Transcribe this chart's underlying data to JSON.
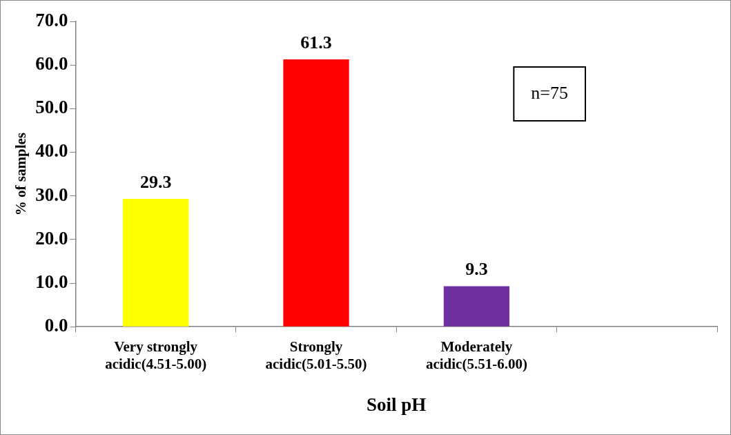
{
  "chart_data": {
    "type": "bar",
    "categories": [
      "Very strongly acidic(4.51-5.00)",
      "Strongly acidic(5.01-5.50)",
      "Moderately acidic(5.51-6.00)",
      null
    ],
    "values": [
      29.3,
      61.3,
      9.3,
      null
    ],
    "colors": [
      "#ffff00",
      "#ff0000",
      "#7030a0",
      "#7030a0"
    ],
    "xlabel": "Soil pH",
    "ylabel": "% of samples",
    "ylim": [
      0,
      70
    ],
    "yticks": [
      {
        "value": 0,
        "label": "0.0"
      },
      {
        "value": 10,
        "label": "10.0"
      },
      {
        "value": 20,
        "label": "20.0"
      },
      {
        "value": 30,
        "label": "30.0"
      },
      {
        "value": 40,
        "label": "40.0"
      },
      {
        "value": 50,
        "label": "50.0"
      },
      {
        "value": 60,
        "label": "60.0"
      },
      {
        "value": 70,
        "label": "70.0"
      }
    ],
    "annotations": [
      "n=75"
    ],
    "data_labels": true,
    "grid": false,
    "legend": false
  }
}
